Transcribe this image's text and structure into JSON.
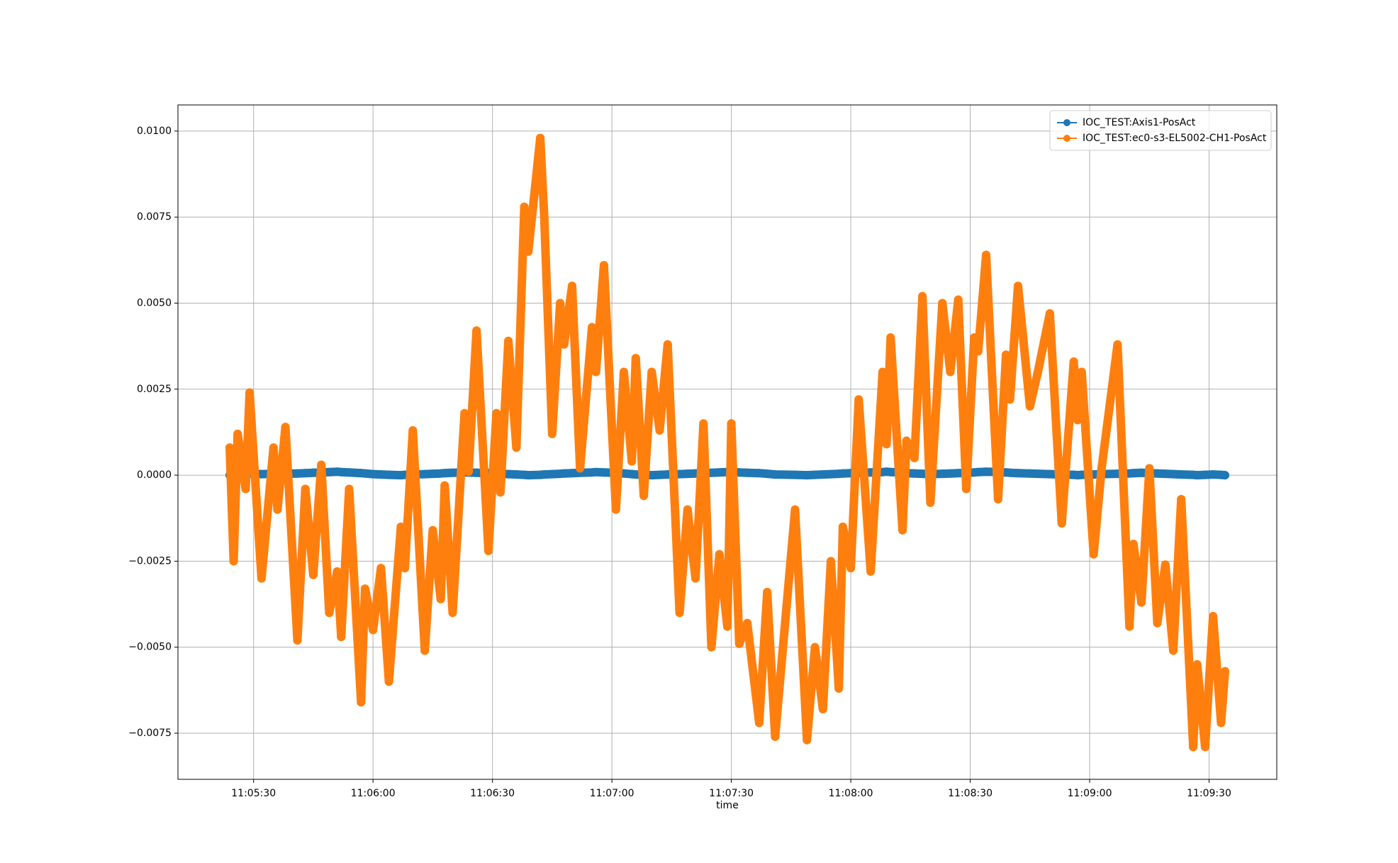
{
  "chart_data": {
    "type": "line",
    "x_label": "time",
    "x": [
      "11:05:24",
      "11:05:25",
      "11:05:26",
      "11:05:28",
      "11:05:29",
      "11:05:32",
      "11:05:35",
      "11:05:36",
      "11:05:38",
      "11:05:41",
      "11:05:43",
      "11:05:45",
      "11:05:47",
      "11:05:49",
      "11:05:51",
      "11:05:52",
      "11:05:54",
      "11:05:57",
      "11:05:58",
      "11:06:00",
      "11:06:02",
      "11:06:04",
      "11:06:07",
      "11:06:08",
      "11:06:10",
      "11:06:13",
      "11:06:15",
      "11:06:17",
      "11:06:18",
      "11:06:20",
      "11:06:23",
      "11:06:24",
      "11:06:26",
      "11:06:29",
      "11:06:31",
      "11:06:32",
      "11:06:34",
      "11:06:36",
      "11:06:38",
      "11:06:39",
      "11:06:42",
      "11:06:43",
      "11:06:45",
      "11:06:47",
      "11:06:48",
      "11:06:50",
      "11:06:52",
      "11:06:55",
      "11:06:56",
      "11:06:58",
      "11:07:01",
      "11:07:03",
      "11:07:05",
      "11:07:06",
      "11:07:08",
      "11:07:10",
      "11:07:12",
      "11:07:14",
      "11:07:17",
      "11:07:19",
      "11:07:21",
      "11:07:23",
      "11:07:25",
      "11:07:27",
      "11:07:29",
      "11:07:30",
      "11:07:32",
      "11:07:34",
      "11:07:37",
      "11:07:39",
      "11:07:41",
      "11:07:46",
      "11:07:49",
      "11:07:51",
      "11:07:53",
      "11:07:55",
      "11:07:57",
      "11:07:58",
      "11:08:00",
      "11:08:02",
      "11:08:05",
      "11:08:08",
      "11:08:09",
      "11:08:10",
      "11:08:13",
      "11:08:14",
      "11:08:16",
      "11:08:18",
      "11:08:20",
      "11:08:23",
      "11:08:25",
      "11:08:27",
      "11:08:29",
      "11:08:31",
      "11:08:32",
      "11:08:34",
      "11:08:37",
      "11:08:39",
      "11:08:40",
      "11:08:42",
      "11:08:45",
      "11:08:47",
      "11:08:50",
      "11:08:53",
      "11:08:56",
      "11:08:57",
      "11:08:58",
      "11:09:01",
      "11:09:03",
      "11:09:07",
      "11:09:10",
      "11:09:11",
      "11:09:13",
      "11:09:15",
      "11:09:17",
      "11:09:19",
      "11:09:21",
      "11:09:23",
      "11:09:26",
      "11:09:27",
      "11:09:29",
      "11:09:31",
      "11:09:33",
      "11:09:34"
    ],
    "series": [
      {
        "name": "IOC_TEST:Axis1-PosAct",
        "color": "#1f77b4",
        "values": [
          0,
          2e-05,
          3e-05,
          4e-05,
          5e-05,
          3e-05,
          4e-05,
          5e-05,
          4e-05,
          5e-05,
          6e-05,
          7e-05,
          8e-05,
          9e-05,
          0.0001,
          9e-05,
          8e-05,
          6e-05,
          5e-05,
          3e-05,
          2e-05,
          1e-05,
          0,
          1e-05,
          2e-05,
          3e-05,
          4e-05,
          5e-05,
          6e-05,
          7e-05,
          8e-05,
          8e-05,
          7e-05,
          6e-05,
          5e-05,
          4e-05,
          3e-05,
          2e-05,
          1e-05,
          0,
          1e-05,
          2e-05,
          3e-05,
          4e-05,
          5e-05,
          6e-05,
          7e-05,
          8e-05,
          9e-05,
          8e-05,
          7e-05,
          5e-05,
          3e-05,
          2e-05,
          1e-05,
          0,
          1e-05,
          2e-05,
          3e-05,
          4e-05,
          5e-05,
          6e-05,
          7e-05,
          8e-05,
          9e-05,
          9e-05,
          8e-05,
          7e-05,
          6e-05,
          4e-05,
          2e-05,
          1e-05,
          0,
          1e-05,
          2e-05,
          3e-05,
          4e-05,
          5e-05,
          6e-05,
          7e-05,
          8e-05,
          9e-05,
          0.0001,
          9e-05,
          8e-05,
          6e-05,
          5e-05,
          4e-05,
          3e-05,
          4e-05,
          5e-05,
          6e-05,
          7e-05,
          8e-05,
          9e-05,
          0.0001,
          9e-05,
          8e-05,
          7e-05,
          6e-05,
          5e-05,
          4e-05,
          3e-05,
          2e-05,
          1e-05,
          0,
          1e-05,
          2e-05,
          3e-05,
          4e-05,
          5e-05,
          6e-05,
          7e-05,
          6e-05,
          5e-05,
          4e-05,
          3e-05,
          2e-05,
          1e-05,
          0,
          1e-05,
          2e-05,
          1e-05,
          0
        ]
      },
      {
        "name": "IOC_TEST:ec0-s3-EL5002-CH1-PosAct",
        "color": "#ff7f0e",
        "values": [
          0.0008,
          -0.0025,
          0.0012,
          -0.0004,
          0.0024,
          -0.003,
          0.0008,
          -0.001,
          0.0014,
          -0.0048,
          -0.0004,
          -0.0029,
          0.0003,
          -0.004,
          -0.0028,
          -0.0047,
          -0.0004,
          -0.0066,
          -0.0033,
          -0.0045,
          -0.0027,
          -0.006,
          -0.0015,
          -0.0027,
          0.0013,
          -0.0051,
          -0.0016,
          -0.0036,
          -0.0003,
          -0.004,
          0.0018,
          0.0001,
          0.0042,
          -0.0022,
          0.0018,
          -0.0005,
          0.0039,
          0.0008,
          0.0078,
          0.0065,
          0.0098,
          0.0075,
          0.0012,
          0.005,
          0.0038,
          0.0055,
          0.0002,
          0.0043,
          0.003,
          0.0061,
          -0.001,
          0.003,
          0.0004,
          0.0034,
          -0.0006,
          0.003,
          0.0013,
          0.0038,
          -0.004,
          -0.001,
          -0.003,
          0.0015,
          -0.005,
          -0.0023,
          -0.0044,
          0.0015,
          -0.0049,
          -0.0043,
          -0.0072,
          -0.0034,
          -0.0076,
          -0.001,
          -0.0077,
          -0.005,
          -0.0068,
          -0.0025,
          -0.0062,
          -0.0015,
          -0.0027,
          0.0022,
          -0.0028,
          0.003,
          0.0009,
          0.004,
          -0.0016,
          0.001,
          0.0005,
          0.0052,
          -0.0008,
          0.005,
          0.003,
          0.0051,
          -0.0004,
          0.004,
          0.0036,
          0.0064,
          -0.0007,
          0.0035,
          0.0022,
          0.0055,
          0.002,
          0.003,
          0.0047,
          -0.0014,
          0.0033,
          0.0016,
          0.003,
          -0.0023,
          0.0002,
          0.0038,
          -0.0044,
          -0.002,
          -0.0037,
          0.0002,
          -0.0043,
          -0.0026,
          -0.0051,
          -0.0007,
          -0.0079,
          -0.0055,
          -0.0079,
          -0.0041,
          -0.0072,
          -0.0057
        ]
      }
    ],
    "xlim": [
      "11:05:11",
      "11:09:47"
    ],
    "xticks": [
      "11:05:30",
      "11:06:00",
      "11:06:30",
      "11:07:00",
      "11:07:30",
      "11:08:00",
      "11:08:30",
      "11:09:00",
      "11:09:30"
    ],
    "ylim": [
      -0.00884,
      0.01076
    ],
    "yticks": [
      {
        "value": -0.0075,
        "label": "−0.0075"
      },
      {
        "value": -0.005,
        "label": "−0.0050"
      },
      {
        "value": -0.0025,
        "label": "−0.0025"
      },
      {
        "value": 0,
        "label": "0.0000"
      },
      {
        "value": 0.0025,
        "label": "0.0025"
      },
      {
        "value": 0.005,
        "label": "0.0050"
      },
      {
        "value": 0.0075,
        "label": "0.0075"
      },
      {
        "value": 0.01,
        "label": "0.0100"
      }
    ],
    "grid": true,
    "legend": "upper right"
  }
}
